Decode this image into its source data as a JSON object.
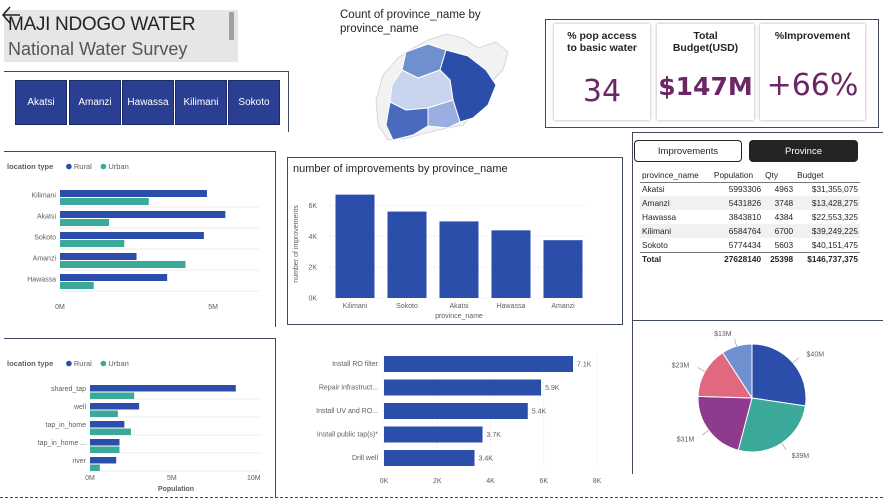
{
  "header": {
    "title": "MAJI NDOGO WATER",
    "subtitle": "National Water Survey"
  },
  "slicer": {
    "items": [
      "Akatsi",
      "Amanzi",
      "Hawassa",
      "Kilimani",
      "Sokoto"
    ]
  },
  "map": {
    "title": "Count of province_name by province_name"
  },
  "kpis": [
    {
      "label": "% pop access to basic water",
      "value": "34"
    },
    {
      "label": "Total Budget(USD)",
      "value": "$147M"
    },
    {
      "label": "%Improvement",
      "value": "+66%"
    }
  ],
  "colors": {
    "primary": "#2b4eab",
    "secondary": "#3aa99a",
    "kpi_value": "#6b2665",
    "slicer_bg": "#2b3f92"
  },
  "tabs": {
    "improvements": "Improvements",
    "province": "Province"
  },
  "table": {
    "headers": [
      "province_name",
      "Population",
      "Qty",
      "Budget"
    ],
    "rows": [
      [
        "Akatsi",
        "5993306",
        "4963",
        "$31,355,075"
      ],
      [
        "Amanzi",
        "5431826",
        "3748",
        "$13,428,275"
      ],
      [
        "Hawassa",
        "3843810",
        "4384",
        "$22,553,325"
      ],
      [
        "Kilimani",
        "6584764",
        "6700",
        "$39,249,225"
      ],
      [
        "Sokoto",
        "5774434",
        "5603",
        "$40,151,475"
      ]
    ],
    "total": [
      "Total",
      "27628140",
      "25398",
      "$146,737,375"
    ]
  },
  "chart_data": [
    {
      "id": "location_by_province",
      "type": "bar",
      "orientation": "horizontal",
      "legend_title": "location type",
      "categories": [
        "Kilimani",
        "Akatsi",
        "Sokoto",
        "Amanzi",
        "Hawassa"
      ],
      "series": [
        {
          "name": "Rural",
          "values": [
            4.8,
            5.4,
            4.7,
            2.5,
            3.5
          ]
        },
        {
          "name": "Urban",
          "values": [
            2.9,
            1.6,
            2.1,
            4.1,
            1.1
          ]
        }
      ],
      "xticks": [
        "0M",
        "5M"
      ],
      "xlim": [
        0,
        6.5
      ],
      "legend_position": "top-left"
    },
    {
      "id": "improvements_by_province",
      "type": "bar",
      "title": "number of improvements by province_name",
      "xlabel": "province_name",
      "ylabel": "number of improvements",
      "categories": [
        "Kilimani",
        "Sokoto",
        "Akatsi",
        "Hawassa",
        "Amanzi"
      ],
      "values": [
        6700,
        5603,
        4963,
        4384,
        3748
      ],
      "yticks": [
        "0K",
        "2K",
        "4K",
        "6K"
      ],
      "ylim": [
        0,
        7000
      ]
    },
    {
      "id": "source_type_population",
      "type": "bar",
      "orientation": "horizontal",
      "legend_title": "location type",
      "xlabel": "Population",
      "categories": [
        "shared_tap",
        "well",
        "tap_in_home",
        "tap_in_home ...",
        "river"
      ],
      "series": [
        {
          "name": "Rural",
          "values": [
            8.9,
            3.0,
            2.1,
            1.8,
            1.6
          ]
        },
        {
          "name": "Urban",
          "values": [
            2.7,
            1.7,
            2.5,
            1.8,
            0.6
          ]
        }
      ],
      "xticks": [
        "0M",
        "5M",
        "10M"
      ],
      "xlim": [
        0,
        10.5
      ],
      "legend_position": "top-left"
    },
    {
      "id": "improvement_types",
      "type": "bar",
      "orientation": "horizontal",
      "categories": [
        "Install RO filter",
        "Repair infrastruct...",
        "Install UV and RO...",
        "Install public tap(s)*",
        "Drill well"
      ],
      "values": [
        7100,
        5900,
        5400,
        3700,
        3400
      ],
      "data_labels": [
        "7.1K",
        "5.9K",
        "5.4K",
        "3.7K",
        "3.4K"
      ],
      "xticks": [
        "0K",
        "2K",
        "4K",
        "6K",
        "8K"
      ],
      "xlim": [
        0,
        8000
      ]
    },
    {
      "id": "budget_pie",
      "type": "pie",
      "slices": [
        {
          "label": "$40M",
          "value": 40.15,
          "color": "#2b4eab"
        },
        {
          "label": "$39M",
          "value": 39.25,
          "color": "#3aa99a"
        },
        {
          "label": "$31M",
          "value": 31.36,
          "color": "#8e3a8f"
        },
        {
          "label": "$23M",
          "value": 22.55,
          "color": "#e0697f"
        },
        {
          "label": "$13M",
          "value": 13.43,
          "color": "#6f8fcf"
        }
      ]
    }
  ]
}
